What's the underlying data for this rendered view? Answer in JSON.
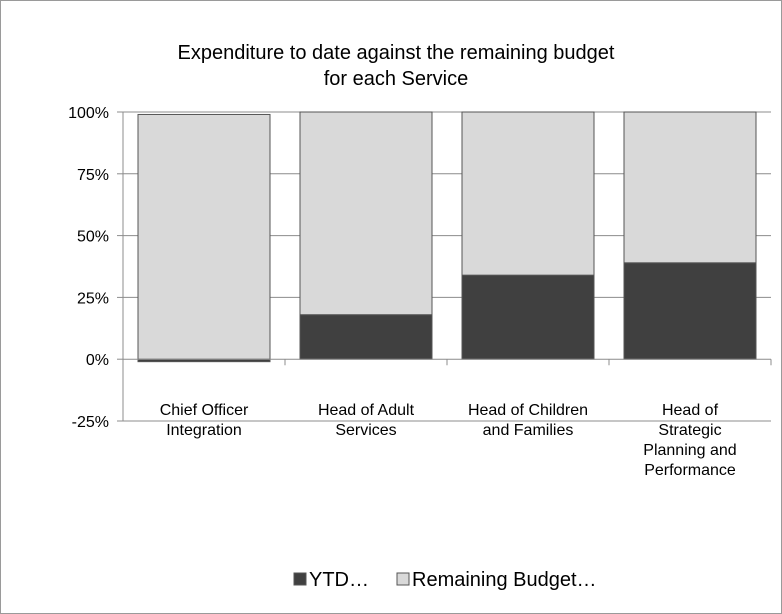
{
  "chart_data": {
    "type": "bar",
    "stacked": true,
    "title_lines": [
      "Expenditure to date against the remaining budget",
      "for each Service"
    ],
    "categories": [
      [
        "Chief Officer",
        "Integration"
      ],
      [
        "Head of Adult",
        "Services"
      ],
      [
        "Head of Children",
        "and Families"
      ],
      [
        "Head of",
        "Strategic",
        "Planning and",
        "Performance"
      ]
    ],
    "series": [
      {
        "name": "YTD…",
        "values": [
          -1,
          18,
          34,
          39
        ],
        "color": "#404040"
      },
      {
        "name": "Remaining Budget…",
        "values": [
          99,
          82,
          66,
          61
        ],
        "color": "#d9d9d9"
      }
    ],
    "ylim": [
      -25,
      100
    ],
    "yticks": [
      -25,
      0,
      25,
      50,
      75,
      100
    ],
    "ytick_labels": [
      "-25%",
      "0%",
      "25%",
      "50%",
      "75%",
      "100%"
    ],
    "grid": true,
    "legend": "bottom"
  }
}
